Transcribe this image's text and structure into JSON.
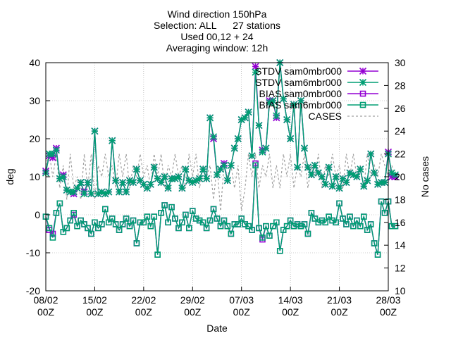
{
  "chart_data": {
    "type": "line",
    "title_lines": [
      "Wind direction 150hPa",
      "Selection: ALL      27 stations",
      "Used 00,12 + 24",
      "Averaging window: 12h"
    ],
    "xlabel": "Date",
    "ylabel": "deg",
    "y2label": "No cases",
    "xlim": [
      "2008-02-08T00",
      "2008-03-28T00"
    ],
    "ylim": [
      -20,
      40
    ],
    "y2lim": [
      10,
      30
    ],
    "x_tick_labels": [
      {
        "top": "08/02",
        "bottom": "00Z"
      },
      {
        "top": "15/02",
        "bottom": "00Z"
      },
      {
        "top": "22/02",
        "bottom": "00Z"
      },
      {
        "top": "29/02",
        "bottom": "00Z"
      },
      {
        "top": "07/03",
        "bottom": "00Z"
      },
      {
        "top": "14/03",
        "bottom": "00Z"
      },
      {
        "top": "21/03",
        "bottom": "00Z"
      },
      {
        "top": "28/03",
        "bottom": "00Z"
      }
    ],
    "y_ticks": [
      -20,
      -10,
      0,
      10,
      20,
      30,
      40
    ],
    "y2_ticks": [
      10,
      12,
      14,
      16,
      18,
      20,
      22,
      24,
      26,
      28,
      30
    ],
    "grid": true,
    "legend_position": "top-right",
    "step_hours": 12,
    "series": [
      {
        "name": "STDV sam0mbr000",
        "axis": "y",
        "color": "#9400d3",
        "marker": "star",
        "values": [
          11.5,
          15.5,
          15.0,
          17.5,
          9.5,
          10.5,
          6.5,
          6.0,
          5.5,
          7.0,
          8.5,
          6.0,
          8.5,
          5.5,
          22.0,
          5.5,
          6.0,
          5.5,
          6.0,
          19.5,
          9.0,
          6.0,
          8.5,
          6.0,
          9.0,
          8.5,
          12.0,
          9.0,
          8.0,
          7.0,
          8.0,
          12.5,
          9.5,
          8.5,
          10.0,
          7.0,
          9.5,
          9.5,
          10.0,
          7.0,
          12.0,
          9.0,
          8.5,
          9.0,
          9.5,
          12.0,
          9.5,
          25.5,
          20.0,
          10.5,
          12.0,
          13.5,
          9.0,
          13.0,
          17.5,
          20.0,
          25.0,
          25.5,
          27.0,
          15.5,
          39.0,
          23.5,
          17.0,
          17.5,
          30.0,
          30.0,
          25.5,
          40.0,
          30.5,
          25.0,
          20.0,
          29.0,
          12.5,
          30.0,
          17.5,
          12.5,
          10.5,
          13.0,
          11.0,
          10.0,
          8.0,
          12.5,
          7.5,
          10.0,
          7.0,
          9.5,
          8.5,
          11.0,
          10.5,
          10.0,
          12.0,
          7.5,
          9.0,
          16.0,
          11.0,
          8.0,
          8.5,
          8.5,
          16.5,
          10.0,
          10.0
        ],
        "data_label_hidden": true
      },
      {
        "name": "STDV sam6mbr000",
        "axis": "y",
        "color": "#009e73",
        "marker": "star",
        "values": [
          11.0,
          16.0,
          16.0,
          17.0,
          9.5,
          10.0,
          6.5,
          6.0,
          6.0,
          7.0,
          8.5,
          5.5,
          8.5,
          5.5,
          22.0,
          5.5,
          6.0,
          5.5,
          6.0,
          19.5,
          9.0,
          6.0,
          8.5,
          6.0,
          9.0,
          8.5,
          12.0,
          9.0,
          8.0,
          7.0,
          8.0,
          12.5,
          9.5,
          8.5,
          10.0,
          7.0,
          9.5,
          9.5,
          10.0,
          7.0,
          12.0,
          9.0,
          8.5,
          9.0,
          9.5,
          12.0,
          9.5,
          25.5,
          20.5,
          10.5,
          12.0,
          13.0,
          9.0,
          13.0,
          17.5,
          20.0,
          25.0,
          25.5,
          27.0,
          15.5,
          37.5,
          23.5,
          16.5,
          17.5,
          29.5,
          30.0,
          26.0,
          40.0,
          30.5,
          25.0,
          20.0,
          29.0,
          12.5,
          30.0,
          17.5,
          12.5,
          10.5,
          13.0,
          11.0,
          10.0,
          8.0,
          12.5,
          7.5,
          10.0,
          7.0,
          9.5,
          8.5,
          11.0,
          10.5,
          10.0,
          12.0,
          7.5,
          9.0,
          16.0,
          11.0,
          8.0,
          8.5,
          8.5,
          16.0,
          11.0,
          10.5
        ]
      },
      {
        "name": "BIAS sam0mbr000",
        "axis": "y",
        "color": "#9400d3",
        "marker": "square",
        "values": [
          -0.5,
          -4.0,
          -5.0,
          0.5,
          3.0,
          -4.5,
          -3.5,
          -1.5,
          0.0,
          -3.0,
          -1.5,
          -2.5,
          -3.5,
          -5.0,
          -2.0,
          -3.5,
          -2.5,
          1.5,
          -2.0,
          -1.0,
          -2.5,
          -4.0,
          -2.5,
          -1.0,
          -3.0,
          -1.5,
          -7.5,
          -2.0,
          -2.0,
          -0.5,
          -3.0,
          -0.5,
          -10.5,
          0.5,
          2.5,
          -2.0,
          2.0,
          -1.0,
          -3.5,
          -2.0,
          0.0,
          -3.5,
          1.0,
          -1.0,
          -1.5,
          -2.0,
          -3.5,
          -1.5,
          1.5,
          -1.0,
          -3.0,
          -1.5,
          -3.0,
          -5.0,
          -2.5,
          -2.5,
          -1.0,
          -2.5,
          -3.0,
          -4.0,
          13.5,
          -3.5,
          -6.5,
          -3.0,
          -5.5,
          -3.0,
          -2.0,
          -9.5,
          -4.0,
          -3.0,
          -1.5,
          -3.0,
          -2.5,
          -3.0,
          -2.5,
          -5.0,
          0.5,
          -1.0,
          -2.0,
          -1.5,
          -2.0,
          -0.5,
          -1.5,
          -2.0,
          3.0,
          -1.0,
          -2.5,
          -0.5,
          -3.0,
          -1.5,
          -3.0,
          -0.5,
          -4.0,
          -2.5,
          -7.5,
          -10.5,
          3.5,
          0.5,
          3.5,
          -3.0,
          -3.0
        ]
      },
      {
        "name": "BIAS sam6mbr000",
        "axis": "y",
        "color": "#009e73",
        "marker": "square",
        "values": [
          -0.5,
          -3.5,
          -6.0,
          0.5,
          3.0,
          -4.5,
          -3.5,
          -1.5,
          0.5,
          -3.0,
          -1.5,
          -2.5,
          -3.5,
          -5.0,
          -2.0,
          -3.5,
          -2.5,
          1.5,
          -2.0,
          -1.0,
          -2.5,
          -4.0,
          -2.5,
          -1.0,
          -3.0,
          -1.5,
          -7.5,
          -2.0,
          -2.0,
          -0.5,
          -3.0,
          -0.5,
          -10.5,
          0.5,
          2.5,
          -2.0,
          2.0,
          -1.0,
          -3.5,
          -2.0,
          0.0,
          -3.5,
          1.0,
          -1.0,
          -1.5,
          -2.0,
          -3.5,
          -1.5,
          1.5,
          -1.0,
          -3.0,
          -1.5,
          -3.0,
          -5.0,
          -2.5,
          -2.5,
          -1.0,
          -2.5,
          -3.0,
          -4.0,
          13.0,
          -3.5,
          -6.0,
          -3.0,
          -5.5,
          -3.0,
          -2.0,
          -9.5,
          -4.0,
          -3.0,
          -1.5,
          -3.0,
          -2.5,
          -3.0,
          -2.5,
          -5.0,
          0.5,
          -1.0,
          -2.0,
          -1.5,
          -2.0,
          -0.5,
          -1.5,
          -2.0,
          3.0,
          -1.0,
          -2.5,
          -0.5,
          -3.0,
          -1.5,
          -3.0,
          -0.5,
          -4.0,
          -2.5,
          -7.5,
          -10.5,
          3.5,
          0.5,
          3.5,
          -3.0,
          -3.0
        ]
      },
      {
        "name": "CASES",
        "axis": "y2",
        "color": "#a0a0a0",
        "marker": "none",
        "dashed": true,
        "values": [
          21,
          22,
          20,
          22,
          19,
          21,
          18,
          22,
          19,
          20,
          18,
          22,
          19,
          22,
          18,
          21,
          20,
          22,
          20,
          21,
          19,
          22,
          20,
          22,
          19,
          21,
          20,
          22,
          20,
          21,
          19,
          22,
          20,
          22,
          19,
          21,
          20,
          22,
          20,
          21,
          19,
          22,
          20,
          22,
          19,
          21,
          20,
          21,
          18,
          21,
          17,
          21,
          20,
          21,
          19,
          21,
          17,
          19,
          22,
          20,
          22,
          19,
          21,
          20,
          22,
          19,
          21,
          19,
          22,
          20,
          22,
          19,
          21,
          20,
          22,
          19,
          21,
          20,
          22,
          19,
          21,
          20,
          22,
          20,
          21,
          19,
          22,
          20,
          22,
          20,
          21,
          19,
          22,
          20,
          21,
          20,
          22,
          21,
          20,
          21,
          20
        ]
      }
    ]
  }
}
